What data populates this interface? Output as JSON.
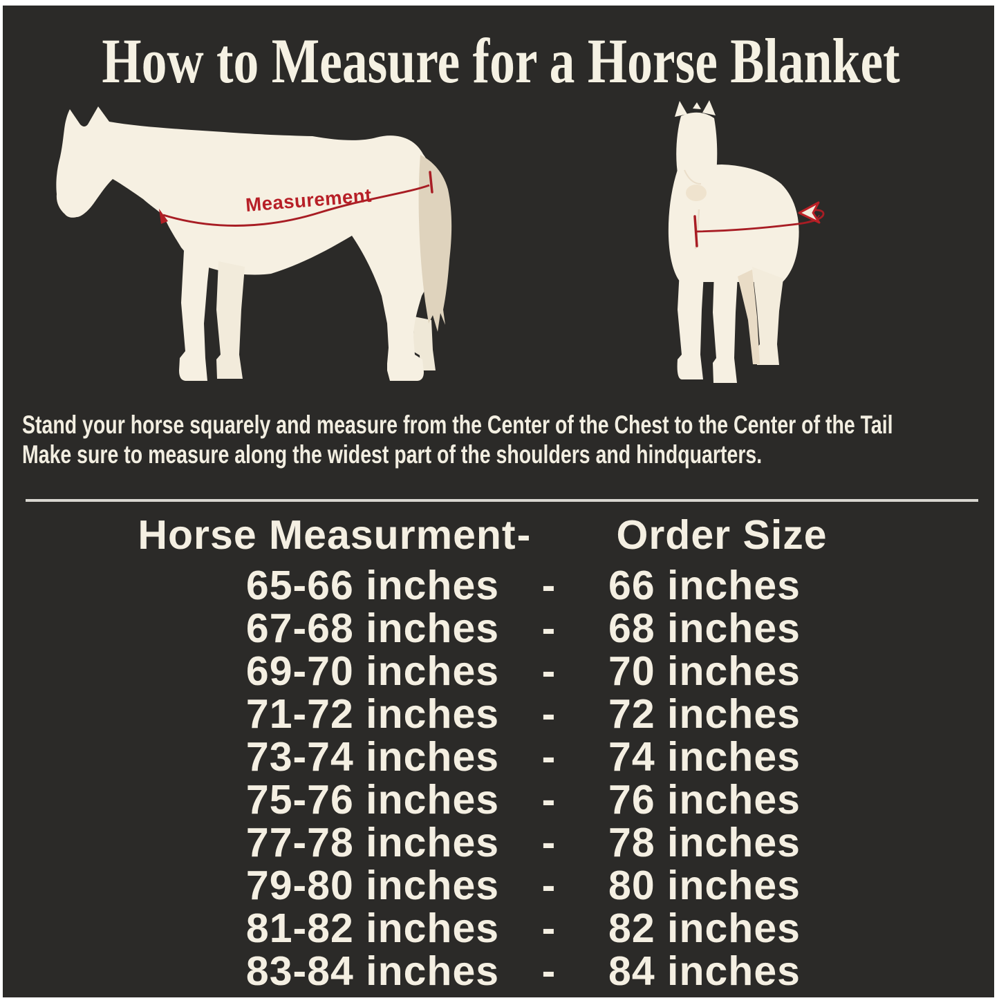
{
  "header": {
    "title": "How to Measure for a Horse Blanket"
  },
  "diagram": {
    "side_horse": "side view horse silhouette",
    "front_horse": "front view horse silhouette",
    "measurement_label": "Measurement"
  },
  "instructions": {
    "line1": "Stand your horse squarely and measure from the Center of the Chest to the Center of the Tail",
    "line2": "Make sure to measure along the widest part of the shoulders and hindquarters."
  },
  "size_table": {
    "header": {
      "measurement": "Horse Measurment",
      "separator": "-",
      "order": "Order Size"
    },
    "rows": [
      {
        "measurement": "65-66 inches",
        "separator": "-",
        "order": "66 inches"
      },
      {
        "measurement": "67-68 inches",
        "separator": "-",
        "order": "68 inches"
      },
      {
        "measurement": "69-70 inches",
        "separator": "-",
        "order": "70 inches"
      },
      {
        "measurement": "71-72 inches",
        "separator": "-",
        "order": "72 inches"
      },
      {
        "measurement": "73-74 inches",
        "separator": "-",
        "order": "74 inches"
      },
      {
        "measurement": "75-76 inches",
        "separator": "-",
        "order": "76 inches"
      },
      {
        "measurement": "77-78 inches",
        "separator": "-",
        "order": "78 inches"
      },
      {
        "measurement": "79-80 inches",
        "separator": "-",
        "order": "80 inches"
      },
      {
        "measurement": "81-82 inches",
        "separator": "-",
        "order": "82 inches"
      },
      {
        "measurement": "83-84 inches",
        "separator": "-",
        "order": "84 inches"
      }
    ]
  },
  "colors": {
    "background": "#2B2A28",
    "frame": "#FFFFFF",
    "cream_text": "#F4EFE2",
    "horse_body": "#F6F0E2",
    "horse_tail": "#DFD3BD",
    "accent_red": "#B01E25",
    "divider": "#D8D6D0"
  }
}
